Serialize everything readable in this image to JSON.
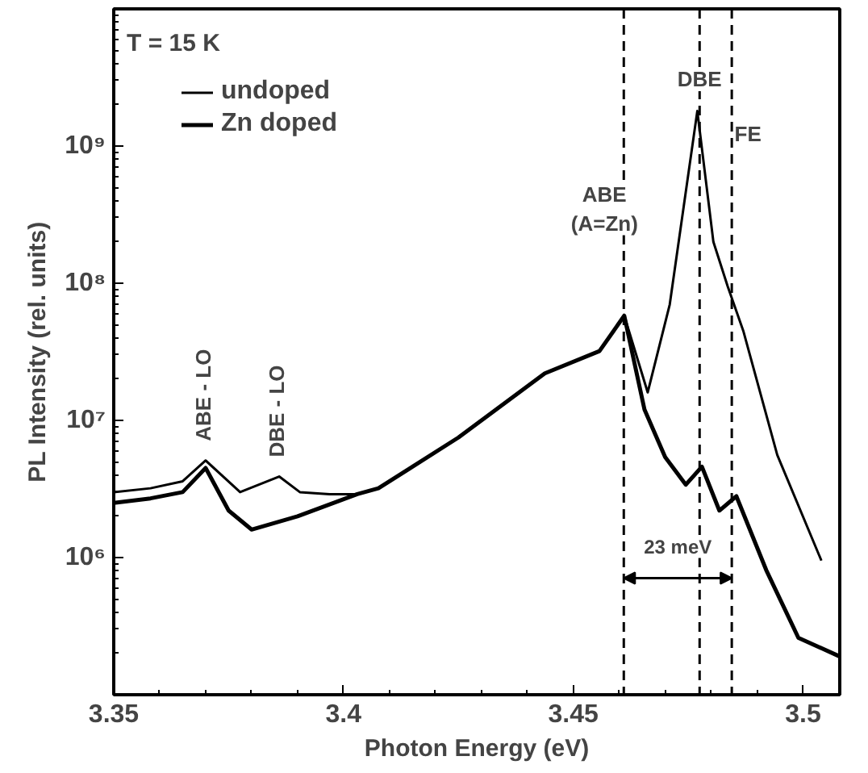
{
  "chart_data": {
    "type": "line",
    "xlabel": "Photon Energy (eV)",
    "ylabel": "PL Intensity (rel. units)",
    "xlim": [
      3.35,
      3.508
    ],
    "xticks": [
      3.35,
      3.4,
      3.45,
      3.5
    ],
    "ylim": [
      100000,
      10000000000
    ],
    "log": true,
    "yticks": [
      {
        "value": 1000000,
        "label": "10⁶"
      },
      {
        "value": 10000000,
        "label": "10⁷"
      },
      {
        "value": 100000000,
        "label": "10⁸"
      },
      {
        "value": 1000000000,
        "label": "10⁹"
      }
    ],
    "grid": false,
    "legend": "top left",
    "series": [
      {
        "name": "undoped",
        "color": "#000000",
        "x": [
          3.35,
          3.358,
          3.365,
          3.37,
          3.3775,
          3.386,
          3.3905,
          3.397,
          3.403,
          3.4076,
          3.425,
          3.4438,
          3.4557,
          3.4611,
          3.4662,
          3.471,
          3.477,
          3.4805,
          3.4836,
          3.487,
          3.4944,
          3.504
        ],
        "values": [
          3000000,
          3200000,
          3600000,
          5100000,
          3000000,
          3900000,
          3000000,
          2900000,
          2900000,
          3200000,
          7500000,
          22000000,
          32000000,
          58000000,
          16000000,
          70000000,
          1800000000,
          200000000,
          95000000,
          45000000,
          5600000,
          950000
        ]
      },
      {
        "name": "Zn doped",
        "color": "#000000",
        "x": [
          3.35,
          3.358,
          3.365,
          3.37,
          3.375,
          3.38,
          3.39,
          3.403,
          3.4076,
          3.425,
          3.4438,
          3.4557,
          3.4611,
          3.4655,
          3.47,
          3.4745,
          3.478,
          3.4818,
          3.4855,
          3.492,
          3.499,
          3.508
        ],
        "values": [
          2500000,
          2700000,
          3000000,
          4500000,
          2200000,
          1600000,
          2000000,
          2900000,
          3200000,
          7500000,
          22000000,
          32000000,
          58000000,
          12000000,
          5400000,
          3400000,
          4600000,
          2200000,
          2800000,
          810000,
          260000,
          190000
        ]
      }
    ],
    "ref_lines": [
      {
        "axis": "x",
        "value": 3.461,
        "label": "ABE\n(A=Zn)",
        "line_style": "dashed",
        "color": "#000000"
      },
      {
        "axis": "x",
        "value": 3.4775,
        "label": "DBE",
        "line_style": "dashed",
        "color": "#000000"
      },
      {
        "axis": "x",
        "value": 3.4845,
        "label": "FE",
        "line_style": "dashed",
        "color": "#000000"
      }
    ],
    "annotations": [
      "T = 15 K",
      {
        "text": "ABE - LO",
        "x": 3.37,
        "y": 5100000
      },
      {
        "text": "DBE - LO",
        "x": 3.386,
        "y": 3900000
      },
      "23 meV"
    ]
  }
}
